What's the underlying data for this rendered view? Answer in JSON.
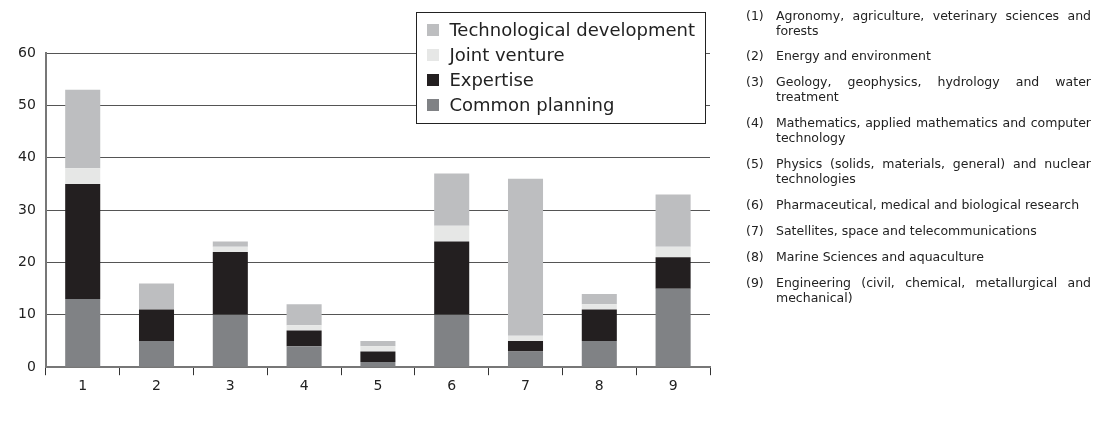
{
  "chart_data": {
    "type": "bar",
    "stacked": true,
    "categories": [
      "1",
      "2",
      "3",
      "4",
      "5",
      "6",
      "7",
      "8",
      "9"
    ],
    "series": [
      {
        "name": "Common planning",
        "color": "#808285",
        "values": [
          13,
          5,
          10,
          4,
          1,
          10,
          3,
          5,
          15
        ]
      },
      {
        "name": "Expertise",
        "color": "#231f20",
        "values": [
          22,
          6,
          12,
          3,
          2,
          14,
          2,
          6,
          6
        ]
      },
      {
        "name": "Joint venture",
        "color": "#e6e7e6",
        "values": [
          3,
          0,
          1,
          1,
          1,
          3,
          1,
          1,
          2
        ]
      },
      {
        "name": "Technological development",
        "color": "#bdbec0",
        "values": [
          15,
          5,
          1,
          4,
          1,
          10,
          30,
          2,
          10
        ]
      }
    ],
    "ylim": [
      0,
      60
    ],
    "yticks": [
      0,
      10,
      20,
      30,
      40,
      50,
      60
    ],
    "grid": "y",
    "legend": "top right",
    "annotations": [
      "(1) Agronomy, agriculture, veterinary sciences and forests",
      "(2) Energy and environment",
      "(3) Geology, geophysics, hydrology and water treatment",
      "(4) Mathematics, applied mathematics and computer technology",
      "(5) Physics (solids, materials, general) and nuclear technologies",
      "(6) Pharmaceutical, medical and biological research",
      "(7) Satellites, space and telecommunications",
      "(8) Marine Sciences and aquaculture",
      "(9) Engineering (civil, chemical, metallurgical and mechanical)"
    ]
  }
}
